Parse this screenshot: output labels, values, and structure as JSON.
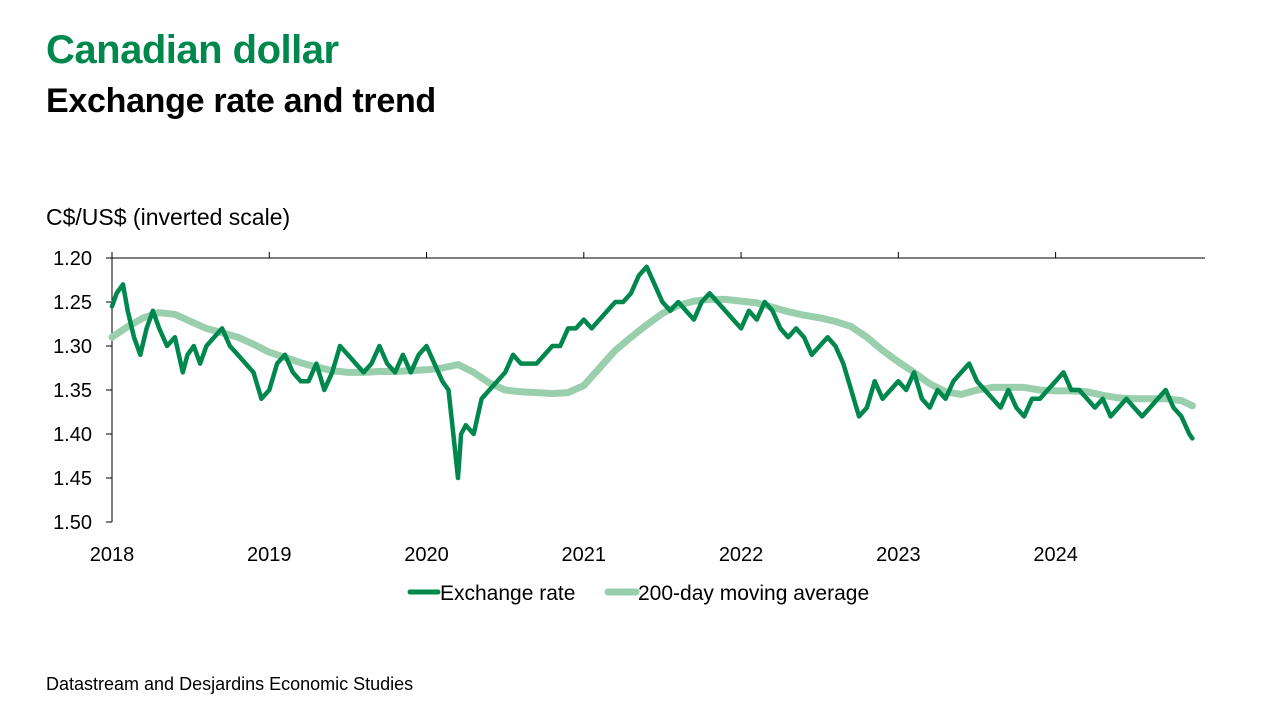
{
  "header": {
    "title": "Canadian dollar",
    "subtitle": "Exchange rate and trend"
  },
  "footer": {
    "source": "Datastream and Desjardins Economic Studies"
  },
  "colors": {
    "title": "#00874e",
    "exchange_rate": "#00874e",
    "moving_average": "#99cfac"
  },
  "chart_data": {
    "type": "line",
    "title": "Canadian dollar",
    "subtitle": "Exchange rate and trend",
    "ylabel": "C$/US$ (inverted scale)",
    "y_inverted": true,
    "ylim": [
      1.2,
      1.5
    ],
    "yticks": [
      "1.20",
      "1.25",
      "1.30",
      "1.35",
      "1.40",
      "1.45",
      "1.50"
    ],
    "xlim": [
      2018.0,
      2024.95
    ],
    "xticks": [
      "2018",
      "2019",
      "2020",
      "2021",
      "2022",
      "2023",
      "2024"
    ],
    "grid": false,
    "legend_position": "bottom",
    "series": [
      {
        "name": "Exchange rate",
        "x": [
          2018.0,
          2018.03,
          2018.07,
          2018.1,
          2018.14,
          2018.18,
          2018.22,
          2018.26,
          2018.3,
          2018.35,
          2018.4,
          2018.45,
          2018.48,
          2018.52,
          2018.56,
          2018.6,
          2018.65,
          2018.7,
          2018.75,
          2018.8,
          2018.85,
          2018.9,
          2018.95,
          2019.0,
          2019.05,
          2019.1,
          2019.15,
          2019.2,
          2019.25,
          2019.3,
          2019.35,
          2019.4,
          2019.45,
          2019.5,
          2019.55,
          2019.6,
          2019.65,
          2019.7,
          2019.75,
          2019.8,
          2019.85,
          2019.9,
          2019.95,
          2020.0,
          2020.05,
          2020.1,
          2020.14,
          2020.17,
          2020.2,
          2020.22,
          2020.25,
          2020.3,
          2020.35,
          2020.4,
          2020.45,
          2020.5,
          2020.55,
          2020.6,
          2020.65,
          2020.7,
          2020.75,
          2020.8,
          2020.85,
          2020.9,
          2020.95,
          2021.0,
          2021.05,
          2021.1,
          2021.15,
          2021.2,
          2021.25,
          2021.3,
          2021.35,
          2021.4,
          2021.45,
          2021.5,
          2021.55,
          2021.6,
          2021.65,
          2021.7,
          2021.75,
          2021.8,
          2021.85,
          2021.9,
          2021.95,
          2022.0,
          2022.05,
          2022.1,
          2022.15,
          2022.2,
          2022.25,
          2022.3,
          2022.35,
          2022.4,
          2022.45,
          2022.5,
          2022.55,
          2022.6,
          2022.65,
          2022.7,
          2022.75,
          2022.8,
          2022.85,
          2022.9,
          2022.95,
          2023.0,
          2023.05,
          2023.1,
          2023.15,
          2023.2,
          2023.25,
          2023.3,
          2023.35,
          2023.4,
          2023.45,
          2023.5,
          2023.55,
          2023.6,
          2023.65,
          2023.7,
          2023.75,
          2023.8,
          2023.85,
          2023.9,
          2023.95,
          2024.0,
          2024.05,
          2024.1,
          2024.15,
          2024.2,
          2024.25,
          2024.3,
          2024.35,
          2024.4,
          2024.45,
          2024.5,
          2024.55,
          2024.6,
          2024.65,
          2024.7,
          2024.75,
          2024.8,
          2024.85,
          2024.87
        ],
        "values": [
          1.255,
          1.24,
          1.23,
          1.26,
          1.29,
          1.31,
          1.28,
          1.26,
          1.28,
          1.3,
          1.29,
          1.33,
          1.31,
          1.3,
          1.32,
          1.3,
          1.29,
          1.28,
          1.3,
          1.31,
          1.32,
          1.33,
          1.36,
          1.35,
          1.32,
          1.31,
          1.33,
          1.34,
          1.34,
          1.32,
          1.35,
          1.33,
          1.3,
          1.31,
          1.32,
          1.33,
          1.32,
          1.3,
          1.32,
          1.33,
          1.31,
          1.33,
          1.31,
          1.3,
          1.32,
          1.34,
          1.35,
          1.4,
          1.45,
          1.4,
          1.39,
          1.4,
          1.36,
          1.35,
          1.34,
          1.33,
          1.31,
          1.32,
          1.32,
          1.32,
          1.31,
          1.3,
          1.3,
          1.28,
          1.28,
          1.27,
          1.28,
          1.27,
          1.26,
          1.25,
          1.25,
          1.24,
          1.22,
          1.21,
          1.23,
          1.25,
          1.26,
          1.25,
          1.26,
          1.27,
          1.25,
          1.24,
          1.25,
          1.26,
          1.27,
          1.28,
          1.26,
          1.27,
          1.25,
          1.26,
          1.28,
          1.29,
          1.28,
          1.29,
          1.31,
          1.3,
          1.29,
          1.3,
          1.32,
          1.35,
          1.38,
          1.37,
          1.34,
          1.36,
          1.35,
          1.34,
          1.35,
          1.33,
          1.36,
          1.37,
          1.35,
          1.36,
          1.34,
          1.33,
          1.32,
          1.34,
          1.35,
          1.36,
          1.37,
          1.35,
          1.37,
          1.38,
          1.36,
          1.36,
          1.35,
          1.34,
          1.33,
          1.35,
          1.35,
          1.36,
          1.37,
          1.36,
          1.38,
          1.37,
          1.36,
          1.37,
          1.38,
          1.37,
          1.36,
          1.35,
          1.37,
          1.38,
          1.4,
          1.405
        ]
      },
      {
        "name": "200-day moving average",
        "x": [
          2018.0,
          2018.1,
          2018.2,
          2018.3,
          2018.4,
          2018.5,
          2018.6,
          2018.7,
          2018.8,
          2018.9,
          2019.0,
          2019.1,
          2019.2,
          2019.3,
          2019.4,
          2019.5,
          2019.6,
          2019.7,
          2019.8,
          2019.9,
          2020.0,
          2020.1,
          2020.2,
          2020.3,
          2020.4,
          2020.5,
          2020.6,
          2020.7,
          2020.8,
          2020.9,
          2021.0,
          2021.1,
          2021.2,
          2021.3,
          2021.4,
          2021.5,
          2021.6,
          2021.7,
          2021.8,
          2021.9,
          2022.0,
          2022.1,
          2022.2,
          2022.3,
          2022.4,
          2022.5,
          2022.6,
          2022.7,
          2022.8,
          2022.9,
          2023.0,
          2023.1,
          2023.2,
          2023.3,
          2023.4,
          2023.5,
          2023.6,
          2023.7,
          2023.8,
          2023.9,
          2024.0,
          2024.1,
          2024.2,
          2024.3,
          2024.4,
          2024.5,
          2024.6,
          2024.7,
          2024.8,
          2024.87
        ],
        "values": [
          1.29,
          1.278,
          1.268,
          1.262,
          1.264,
          1.272,
          1.28,
          1.285,
          1.29,
          1.298,
          1.307,
          1.313,
          1.319,
          1.324,
          1.328,
          1.33,
          1.33,
          1.329,
          1.329,
          1.328,
          1.327,
          1.325,
          1.321,
          1.33,
          1.342,
          1.35,
          1.352,
          1.353,
          1.354,
          1.353,
          1.345,
          1.325,
          1.305,
          1.29,
          1.276,
          1.263,
          1.254,
          1.249,
          1.247,
          1.247,
          1.249,
          1.251,
          1.256,
          1.261,
          1.265,
          1.268,
          1.272,
          1.278,
          1.29,
          1.305,
          1.318,
          1.33,
          1.343,
          1.352,
          1.355,
          1.35,
          1.347,
          1.347,
          1.347,
          1.35,
          1.351,
          1.351,
          1.352,
          1.356,
          1.359,
          1.36,
          1.36,
          1.36,
          1.362,
          1.368
        ]
      }
    ]
  }
}
